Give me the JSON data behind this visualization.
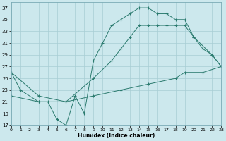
{
  "bg_color": "#cce8ed",
  "grid_color": "#a8cdd4",
  "line_color": "#2a7a6e",
  "xlabel": "Humidex (Indice chaleur)",
  "xlim": [
    0,
    23
  ],
  "ylim": [
    17,
    38
  ],
  "xticks": [
    0,
    1,
    2,
    3,
    4,
    5,
    6,
    7,
    8,
    9,
    10,
    11,
    12,
    13,
    14,
    15,
    16,
    17,
    18,
    19,
    20,
    21,
    22,
    23
  ],
  "yticks": [
    17,
    19,
    21,
    23,
    25,
    27,
    29,
    31,
    33,
    35,
    37
  ],
  "line1_x": [
    0,
    1,
    3,
    4,
    5,
    6,
    7,
    8,
    9,
    10,
    11,
    12,
    13,
    14,
    15,
    16,
    17,
    18,
    19,
    20,
    21,
    22,
    23
  ],
  "line1_y": [
    26,
    23,
    21,
    21,
    18,
    17,
    22,
    19,
    28,
    31,
    34,
    35,
    36,
    37,
    37,
    36,
    36,
    35,
    35,
    32,
    30,
    29,
    27
  ],
  "line2_x": [
    0,
    3,
    6,
    9,
    11,
    12,
    13,
    14,
    15,
    16,
    17,
    18,
    19,
    20,
    22,
    23
  ],
  "line2_y": [
    26,
    22,
    21,
    25,
    28,
    30,
    32,
    34,
    34,
    34,
    34,
    34,
    34,
    32,
    29,
    27
  ],
  "line3_x": [
    0,
    3,
    6,
    9,
    12,
    15,
    18,
    19,
    21,
    23
  ],
  "line3_y": [
    22,
    21,
    21,
    22,
    23,
    24,
    25,
    26,
    26,
    27
  ]
}
